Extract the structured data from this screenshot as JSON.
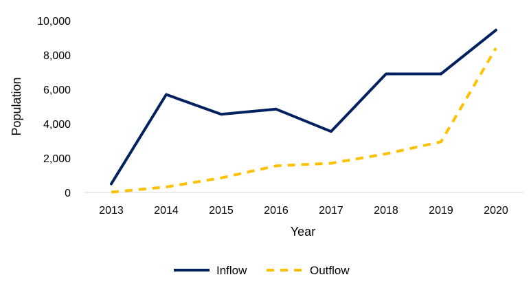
{
  "chart_data": {
    "type": "line",
    "title": "",
    "xlabel": "Year",
    "ylabel": "Population",
    "x": [
      "2013",
      "2014",
      "2015",
      "2016",
      "2017",
      "2018",
      "2019",
      "2020"
    ],
    "ylim": [
      0,
      10000
    ],
    "yticks": [
      0,
      2000,
      4000,
      6000,
      8000,
      10000
    ],
    "ytick_labels": [
      "0",
      "2,000",
      "4,000",
      "6,000",
      "8,000",
      "10,000"
    ],
    "grid": false,
    "legend": "bottom",
    "series": [
      {
        "name": "Inflow",
        "values": [
          500,
          5700,
          4550,
          4850,
          3550,
          6900,
          6900,
          9450
        ],
        "color": "#002060",
        "style": "solid"
      },
      {
        "name": "Outflow",
        "values": [
          20,
          320,
          850,
          1550,
          1700,
          2250,
          2950,
          8400
        ],
        "color": "#FFC000",
        "style": "dashed"
      }
    ]
  }
}
